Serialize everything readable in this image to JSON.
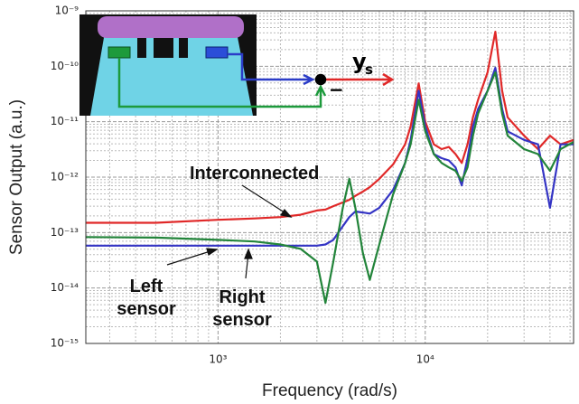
{
  "chart_data": {
    "type": "line",
    "xlabel": "Frequency (rad/s)",
    "ylabel": "Sensor Output (a.u.)",
    "xscale": "log",
    "yscale": "log",
    "grid": true,
    "xlim": [
      230,
      52000
    ],
    "ylim": [
      1e-15,
      1e-09
    ],
    "xticks": [
      {
        "value": 1000,
        "label": "10³"
      },
      {
        "value": 10000,
        "label": "10⁴"
      }
    ],
    "yticks": [
      {
        "value": 1e-15,
        "label": "10⁻¹⁵"
      },
      {
        "value": 1e-14,
        "label": "10⁻¹⁴"
      },
      {
        "value": 1e-13,
        "label": "10⁻¹³"
      },
      {
        "value": 1e-12,
        "label": "10⁻¹²"
      },
      {
        "value": 1e-11,
        "label": "10⁻¹¹"
      },
      {
        "value": 1e-10,
        "label": "10⁻¹⁰"
      },
      {
        "value": 1e-09,
        "label": "10⁻⁹"
      }
    ],
    "annotations": [
      "y",
      "s",
      "−"
    ],
    "x": [
      230,
      500,
      1000,
      1500,
      2000,
      2500,
      3000,
      3300,
      3600,
      4000,
      4300,
      4600,
      5000,
      5400,
      6000,
      7000,
      8000,
      8500,
      9300,
      10000,
      11000,
      12000,
      13000,
      14000,
      15000,
      16000,
      17000,
      18000,
      20000,
      21800,
      23500,
      25000,
      30000,
      35000,
      40000,
      45000,
      52000
    ],
    "series": [
      {
        "name": "Interconnected",
        "color": "#e02828",
        "values": [
          1.5e-13,
          1.5e-13,
          1.7e-13,
          1.8e-13,
          1.9e-13,
          2.1e-13,
          2.5e-13,
          2.6e-13,
          3e-13,
          3.5e-13,
          3.9e-13,
          4.6e-13,
          5.5e-13,
          6.6e-13,
          9.3e-13,
          1.7e-12,
          3.9e-12,
          8.2e-12,
          4.9e-11,
          1e-11,
          3.9e-12,
          3.2e-12,
          3.5e-12,
          2.6e-12,
          1.8e-12,
          3.9e-12,
          1.2e-11,
          2.5e-11,
          7.8e-11,
          4.2e-10,
          3.6e-11,
          1.2e-11,
          5.6e-12,
          3.2e-12,
          5.6e-12,
          3.9e-12,
          4.7e-12
        ]
      },
      {
        "name": "Left sensor",
        "color": "#3434c4",
        "values": [
          5.8e-14,
          5.8e-14,
          5.8e-14,
          5.8e-14,
          5.8e-14,
          5.8e-14,
          5.8e-14,
          6.1e-14,
          7.4e-14,
          1.3e-13,
          1.9e-13,
          2.4e-13,
          2.3e-13,
          2.2e-13,
          2.8e-13,
          5.9e-13,
          1.8e-12,
          4.7e-12,
          3.6e-11,
          8.2e-12,
          2.6e-12,
          2.2e-12,
          2e-12,
          1.5e-12,
          7.1e-13,
          2.2e-12,
          8.2e-12,
          1.7e-11,
          3.6e-11,
          9.4e-11,
          1.7e-11,
          6.7e-12,
          4.7e-12,
          3.9e-12,
          2.8e-13,
          3.9e-12,
          3.9e-12
        ]
      },
      {
        "name": "Right sensor",
        "color": "#22843a",
        "values": [
          8.3e-14,
          8.1e-14,
          7.4e-14,
          6.9e-14,
          6.1e-14,
          5.1e-14,
          3e-14,
          5.4e-15,
          3e-14,
          2.8e-13,
          9.3e-13,
          2.8e-13,
          4.3e-14,
          1.4e-14,
          6.1e-14,
          4.9e-13,
          1.8e-12,
          3.9e-12,
          2.5e-11,
          6.7e-12,
          2.6e-12,
          1.8e-12,
          1.5e-12,
          1.3e-12,
          8.5e-13,
          1.5e-12,
          5.6e-12,
          1.4e-11,
          3.6e-11,
          7.8e-11,
          1.4e-11,
          5.6e-12,
          3.2e-12,
          2.6e-12,
          1.3e-12,
          3.2e-12,
          4.3e-12
        ]
      }
    ]
  }
}
